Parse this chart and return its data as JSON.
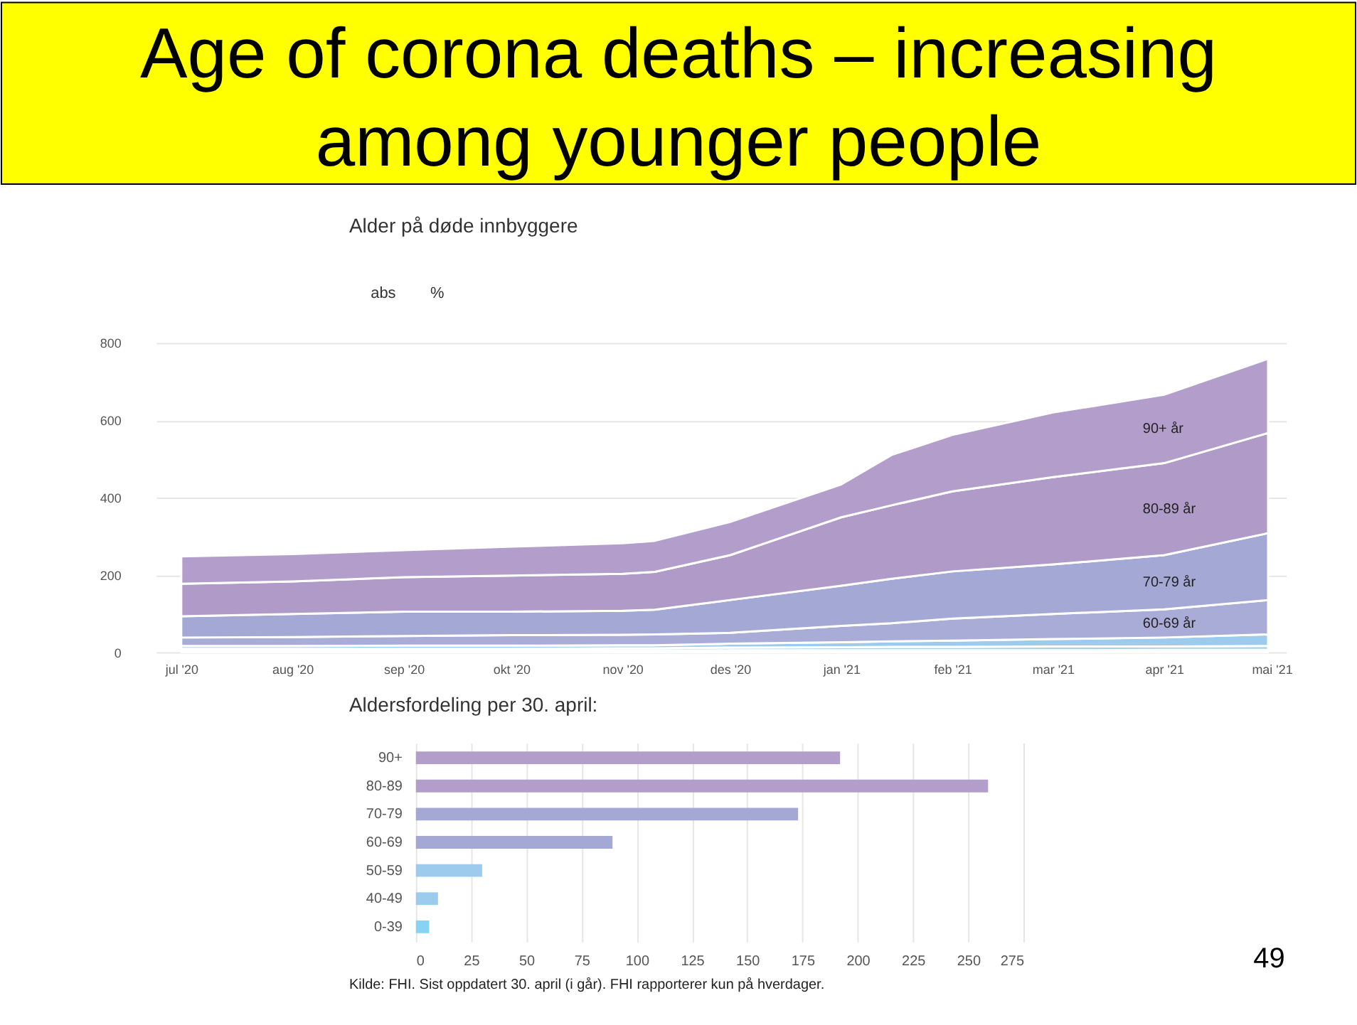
{
  "chart_data": [
    {
      "type": "area",
      "stacked": true,
      "title": "Age of corona deaths – increasing among younger people",
      "subtitle": "Alder på døde innbyggere",
      "annotations": [
        "abs",
        "%"
      ],
      "x": [
        "2020-07-01",
        "2020-08-01",
        "2020-09-01",
        "2020-10-01",
        "2020-11-01",
        "2020-11-10",
        "2020-12-01",
        "2021-01-01",
        "2021-01-15",
        "2021-02-01",
        "2021-03-01",
        "2021-04-01",
        "2021-04-30"
      ],
      "xlim": [
        "2020-06-24",
        "2021-05-05"
      ],
      "xticks": [
        {
          "value": "2020-07-01",
          "label": "jul '20"
        },
        {
          "value": "2020-08-01",
          "label": "aug '20"
        },
        {
          "value": "2020-09-01",
          "label": "sep '20"
        },
        {
          "value": "2020-10-01",
          "label": "okt '20"
        },
        {
          "value": "2020-11-01",
          "label": "nov '20"
        },
        {
          "value": "2020-12-01",
          "label": "des '20"
        },
        {
          "value": "2021-01-01",
          "label": "jan '21"
        },
        {
          "value": "2021-02-01",
          "label": "feb '21"
        },
        {
          "value": "2021-03-01",
          "label": "mar '21"
        },
        {
          "value": "2021-04-01",
          "label": "apr '21"
        },
        {
          "value": "2021-05-01",
          "label": "mai '21"
        }
      ],
      "ylim": [
        0,
        800
      ],
      "yticks": [
        0,
        200,
        400,
        600,
        800
      ],
      "grid": "y",
      "series": [
        {
          "color": "#86d3f3",
          "values": [
            4,
            4,
            4,
            4,
            4,
            4,
            5,
            5,
            5,
            5,
            5,
            6,
            6
          ]
        },
        {
          "color": "#a4d0ef",
          "values": [
            5,
            5,
            5,
            5,
            6,
            6,
            7,
            8,
            9,
            9,
            10,
            9,
            10
          ]
        },
        {
          "color": "#9ccbee",
          "values": [
            7,
            7,
            8,
            8,
            8,
            8,
            10,
            13,
            14,
            16,
            19,
            23,
            30
          ]
        },
        {
          "name": "60-69 år",
          "color": "#a8acd7",
          "values": [
            22,
            23,
            25,
            27,
            27,
            28,
            28,
            42,
            47,
            57,
            65,
            73,
            89
          ]
        },
        {
          "name": "70-79 år",
          "color": "#a3a8d4",
          "values": [
            55,
            60,
            63,
            61,
            62,
            64,
            85,
            104,
            115,
            122,
            128,
            140,
            173
          ]
        },
        {
          "name": "80-89 år",
          "color": "#b09ac8",
          "values": [
            84,
            84,
            89,
            93,
            96,
            98,
            116,
            177,
            190,
            207,
            226,
            238,
            259
          ]
        },
        {
          "name": "90+ år",
          "color": "#b39dca",
          "values": [
            71,
            71,
            70,
            75,
            79,
            80,
            86,
            85,
            130,
            146,
            167,
            177,
            192
          ]
        }
      ]
    },
    {
      "type": "bar",
      "orientation": "horizontal",
      "title": "Aldersfordeling per 30. april:",
      "categories": [
        "90+",
        "80-89",
        "70-79",
        "60-69",
        "50-59",
        "40-49",
        "0-39"
      ],
      "values": [
        192,
        259,
        173,
        89,
        30,
        10,
        6
      ],
      "colors": [
        "#b39dca",
        "#b39dca",
        "#a3a8d4",
        "#a3a8d4",
        "#9ccbee",
        "#9ccbee",
        "#86d3f3"
      ],
      "xlim": [
        0,
        275
      ],
      "xticks": [
        0,
        25,
        50,
        75,
        100,
        125,
        150,
        175,
        200,
        225,
        250,
        275
      ],
      "grid": "x",
      "annotations": [
        "Kilde: FHI. Sist oppdatert 30. april (i går). FHI rapporterer kun på hverdager.",
        "49"
      ]
    }
  ]
}
